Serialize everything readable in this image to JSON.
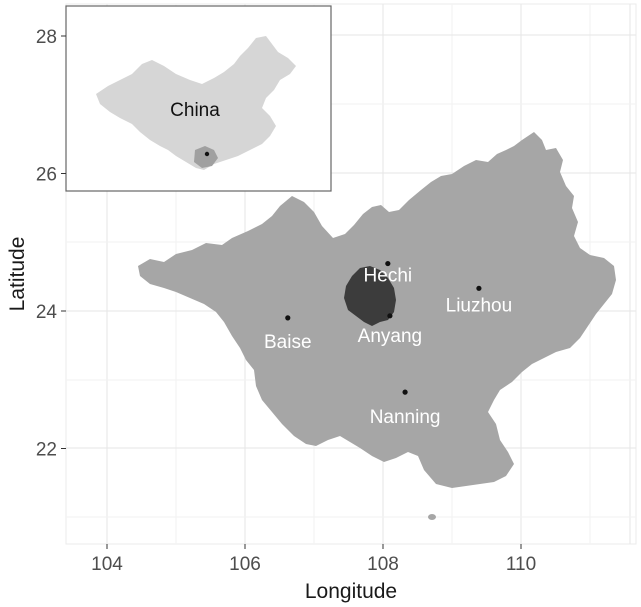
{
  "map": {
    "xlabel": "Longitude",
    "ylabel": "Latitude",
    "x_ticks": [
      "104",
      "106",
      "108",
      "110",
      "112"
    ],
    "y_ticks": [
      "28",
      "26",
      "24",
      "22"
    ],
    "x_range": [
      103.4,
      112.3
    ],
    "y_range": [
      20.6,
      28.45
    ],
    "grid": true,
    "colors": {
      "panel": "#ffffff",
      "grid": "#e6e6e6",
      "region": "#a6a6a6",
      "highlight": "#3c3c3c",
      "inset_country": "#d6d6d6",
      "inset_region": "#a0a0a0"
    },
    "cities": [
      {
        "name": "Hechi",
        "lon": 108.07,
        "lat": 24.69
      },
      {
        "name": "Liuzhou",
        "lon": 109.39,
        "lat": 24.33
      },
      {
        "name": "Baise",
        "lon": 106.62,
        "lat": 23.9
      },
      {
        "name": "Anyang",
        "lon": 108.1,
        "lat": 23.93
      },
      {
        "name": "Nanning",
        "lon": 108.32,
        "lat": 22.82
      }
    ],
    "inset": {
      "label": "China"
    }
  }
}
